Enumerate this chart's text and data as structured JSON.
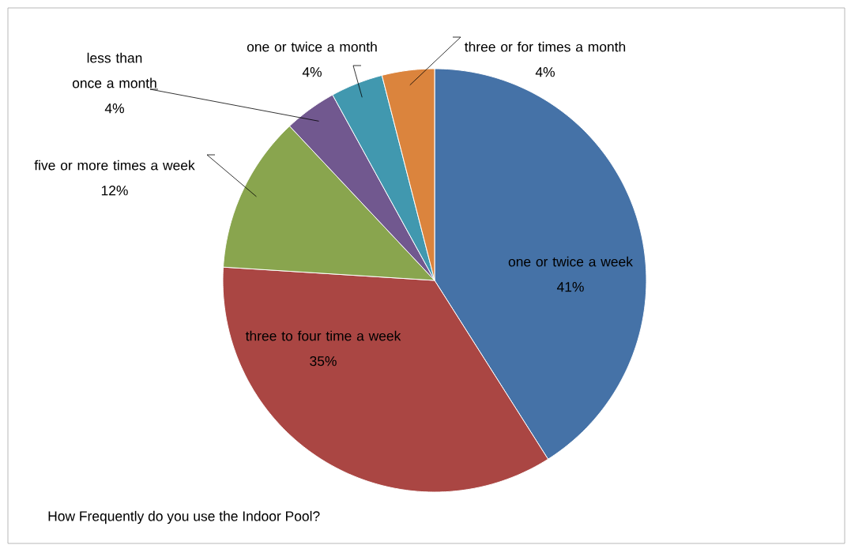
{
  "chart_data": {
    "type": "pie",
    "title": "How Frequently do you use the Indoor Pool?",
    "categories": [
      "one or twice a week",
      "three to four time a week",
      "five or more times a week",
      "less than once a month",
      "one or twice a month",
      "three or for times a month"
    ],
    "values": [
      41,
      35,
      12,
      4,
      4,
      4
    ],
    "value_labels": [
      "41%",
      "35%",
      "12%",
      "4%",
      "4%",
      "4%"
    ],
    "colors": [
      "#4572a7",
      "#aa4643",
      "#89a54e",
      "#71588f",
      "#4198af",
      "#db843d"
    ]
  }
}
